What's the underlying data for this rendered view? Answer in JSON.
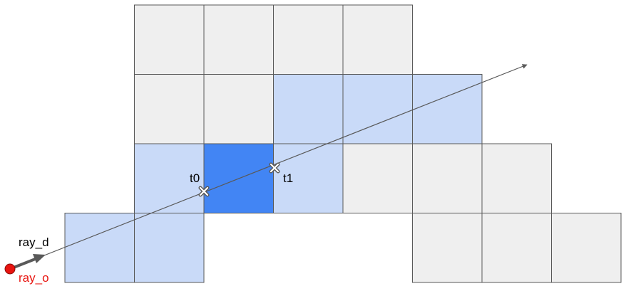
{
  "colors": {
    "empty_cell": "#efefef",
    "traversed_cell": "#c9daf8",
    "current_cell": "#4285f4",
    "grid_line": "#595959",
    "ray": "#595959",
    "origin": "#e8140f",
    "origin_label": "#e8140f",
    "text": "#000000"
  },
  "grid": {
    "cells": [
      {
        "col": 1,
        "row": 0,
        "state": "empty"
      },
      {
        "col": 2,
        "row": 0,
        "state": "empty"
      },
      {
        "col": 3,
        "row": 0,
        "state": "empty"
      },
      {
        "col": 4,
        "row": 0,
        "state": "empty"
      },
      {
        "col": 1,
        "row": 1,
        "state": "empty"
      },
      {
        "col": 2,
        "row": 1,
        "state": "empty"
      },
      {
        "col": 3,
        "row": 1,
        "state": "traversed"
      },
      {
        "col": 4,
        "row": 1,
        "state": "traversed"
      },
      {
        "col": 5,
        "row": 1,
        "state": "traversed"
      },
      {
        "col": 1,
        "row": 2,
        "state": "traversed"
      },
      {
        "col": 2,
        "row": 2,
        "state": "current"
      },
      {
        "col": 3,
        "row": 2,
        "state": "traversed"
      },
      {
        "col": 4,
        "row": 2,
        "state": "empty"
      },
      {
        "col": 5,
        "row": 2,
        "state": "empty"
      },
      {
        "col": 6,
        "row": 2,
        "state": "empty"
      },
      {
        "col": 0,
        "row": 3,
        "state": "traversed"
      },
      {
        "col": 1,
        "row": 3,
        "state": "traversed"
      },
      {
        "col": 5,
        "row": 3,
        "state": "empty"
      },
      {
        "col": 6,
        "row": 3,
        "state": "empty"
      },
      {
        "col": 7,
        "row": 3,
        "state": "empty"
      }
    ]
  },
  "labels": {
    "ray_d": "ray_d",
    "ray_o": "ray_o",
    "t0": "t0",
    "t1": "t1"
  }
}
